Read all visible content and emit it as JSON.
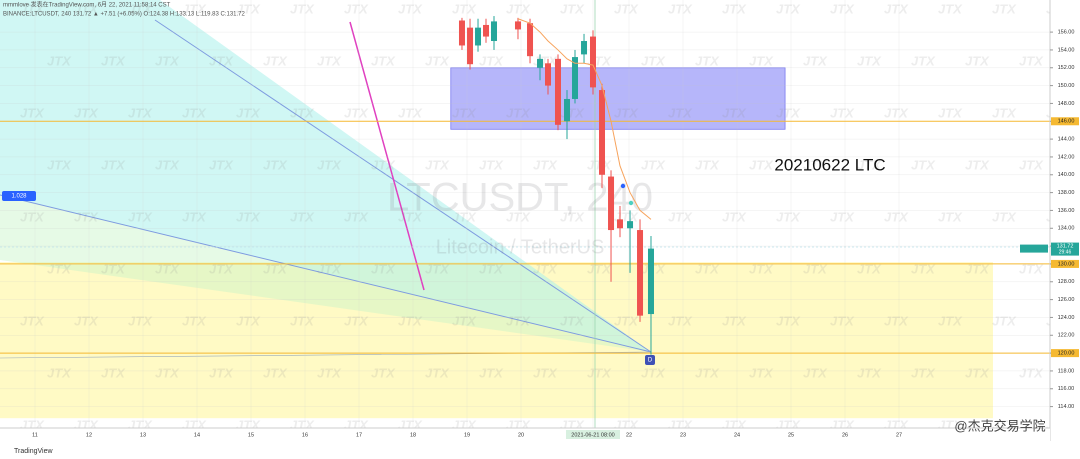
{
  "chart_data": {
    "type": "candlestick",
    "header": [
      "mmmlove 发表在TradingView.com, 6月 22, 2021 11:58:14 CST",
      "BINANCE:LTCUSDT, 240  131.72 ▲ +7.51 (+6.05%)  O:124.38 H:133.13 L:119.83 C:131.72"
    ],
    "watermark": "JTX",
    "symbol_watermark": "LTCUSDT, 240",
    "symbol_subtitle": "Litecoin / TetherUS",
    "annotation": "20210622 LTC",
    "fan_label": "1.028",
    "marker_label": "D",
    "credit": "@杰克交易学院",
    "logo": "TradingView",
    "x": [
      18.907,
      19.056,
      19.204,
      19.352,
      19.5,
      19.944,
      20.167,
      20.352,
      20.5,
      20.685,
      20.852,
      21.0,
      21.167,
      21.333,
      21.5,
      21.667,
      21.833,
      22.019,
      22.204,
      22.407
    ],
    "open": [
      157.3,
      156.5,
      154.5,
      156.8,
      155.0,
      157.2,
      157.0,
      152.0,
      152.5,
      153.0,
      146.0,
      148.5,
      153.5,
      155.5,
      149.5,
      139.8,
      135.0,
      134.0,
      133.8,
      124.38
    ],
    "high": [
      157.6,
      157.5,
      157.5,
      157.5,
      157.8,
      157.6,
      157.5,
      153.5,
      153.0,
      153.5,
      149.5,
      154.0,
      155.8,
      156.2,
      150.2,
      140.5,
      136.5,
      136.0,
      135.0,
      133.13
    ],
    "low": [
      154.0,
      151.8,
      153.8,
      154.8,
      154.0,
      155.2,
      152.5,
      150.6,
      149.0,
      145.0,
      144.0,
      148.0,
      152.5,
      149.0,
      138.5,
      128.0,
      133.0,
      129.0,
      123.5,
      119.83
    ],
    "close": [
      154.5,
      152.4,
      156.5,
      155.5,
      157.2,
      156.3,
      153.3,
      153.0,
      150.0,
      145.6,
      148.5,
      153.2,
      155.0,
      149.8,
      140.0,
      133.8,
      134.0,
      134.8,
      124.2,
      131.72
    ],
    "up_color": "#26a69a",
    "down_color": "#ef5350",
    "ma": {
      "color": "#f7a35c",
      "values": [
        null,
        null,
        null,
        null,
        null,
        157.5,
        157.0,
        156.0,
        155.0,
        154.0,
        153.0,
        152.5,
        152.5,
        152.3,
        150.0,
        146.0,
        141.0,
        138.0,
        136.0,
        135.0
      ]
    },
    "hlines": [
      {
        "value": 146,
        "label": "146.00",
        "color": "#f5b932"
      },
      {
        "value": 130,
        "label": "130.00",
        "color": "#f5b932"
      },
      {
        "value": 120,
        "label": "120.00",
        "color": "#f5b932"
      }
    ],
    "zones": [
      {
        "x": [
          18.7,
          24.89
        ],
        "y": [
          145.1,
          152.0
        ],
        "color": "rgba(110,110,245,0.5)"
      },
      {
        "x": [
          10.352,
          28.74
        ],
        "y": [
          112.7,
          130.2
        ],
        "color": "rgba(255,245,150,0.55)"
      }
    ],
    "price_label": {
      "symbol": "LTCUSDT",
      "countdown": "29:46"
    },
    "xlim": [
      10.352,
      29.796
    ],
    "ylim": [
      111.6,
      159.6
    ],
    "xticks": [
      11,
      12,
      13,
      14,
      15,
      16,
      17,
      18,
      19,
      20,
      {
        "value": 21.333,
        "label": "2021-06-21  08:00"
      },
      22,
      23,
      24,
      25,
      26,
      27
    ],
    "yticks": [
      {
        "value": 114,
        "label": "114.00"
      },
      {
        "value": 116,
        "label": "116.00"
      },
      {
        "value": 118,
        "label": "118.00"
      },
      {
        "value": 120,
        "label": "120.00"
      },
      {
        "value": 122,
        "label": "122.00"
      },
      {
        "value": 124,
        "label": "124.00"
      },
      {
        "value": 126,
        "label": "126.00"
      },
      {
        "value": 128,
        "label": "128.00"
      },
      {
        "value": 130,
        "label": "130.00"
      },
      {
        "value": 132,
        "label": "132.00"
      },
      {
        "value": 134,
        "label": "134.00"
      },
      {
        "value": 136,
        "label": "136.00"
      },
      {
        "value": 138,
        "label": "138.00"
      },
      {
        "value": 140,
        "label": "140.00"
      },
      {
        "value": 142,
        "label": "142.00"
      },
      {
        "value": 144,
        "label": "144.00"
      },
      {
        "value": 146,
        "label": "146.00"
      },
      {
        "value": 148,
        "label": "148.00"
      },
      {
        "value": 150,
        "label": "150.00"
      },
      {
        "value": 152,
        "label": "152.00"
      },
      {
        "value": 154,
        "label": "154.00"
      },
      {
        "value": 156,
        "label": "156.00"
      }
    ],
    "grid": true
  }
}
